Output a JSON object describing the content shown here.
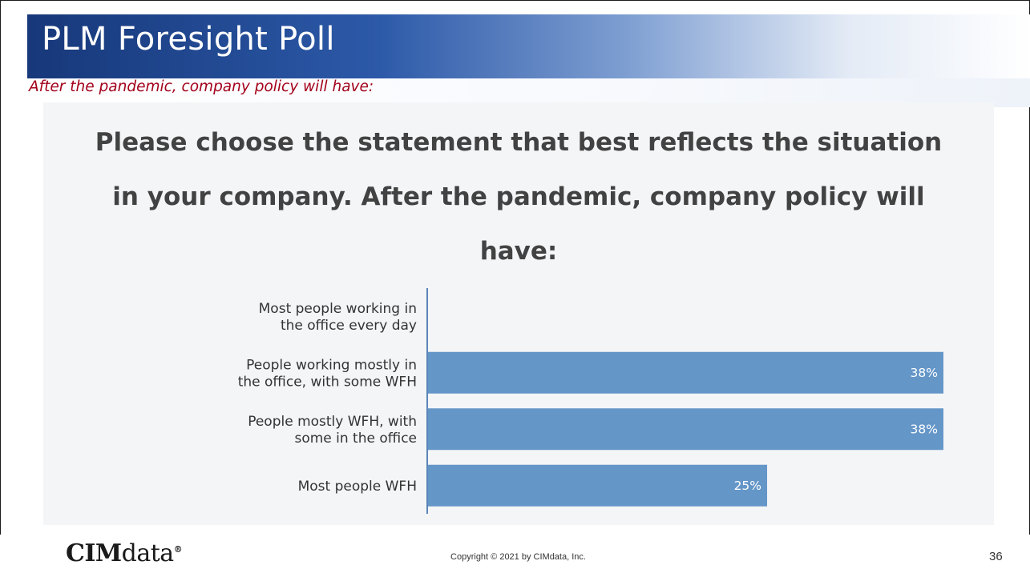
{
  "slide": {
    "title": "PLM Foresight Poll",
    "subtitle": "After the pandemic, company policy will have:",
    "question_lines": [
      "Please choose the statement that best reflects the situation",
      "in your company. After the pandemic, company policy will",
      "have:"
    ]
  },
  "chart_data": {
    "type": "bar",
    "orientation": "horizontal",
    "categories": [
      [
        "Most people working in",
        "the office every day"
      ],
      [
        "People working mostly in",
        "the office, with some WFH"
      ],
      [
        "People mostly WFH, with",
        "some in the office"
      ],
      [
        "Most people WFH"
      ]
    ],
    "values": [
      0,
      38,
      38,
      25
    ],
    "value_labels": [
      "",
      "38%",
      "38%",
      "25%"
    ],
    "xlim": [
      0,
      40
    ],
    "grid": false,
    "bar_color": "#6496c8"
  },
  "footer": {
    "logo_main": "CIM",
    "logo_data": "data",
    "logo_mark": "®",
    "copyright": "Copyright © 2021 by CIMdata, Inc.",
    "page_number": "36"
  }
}
